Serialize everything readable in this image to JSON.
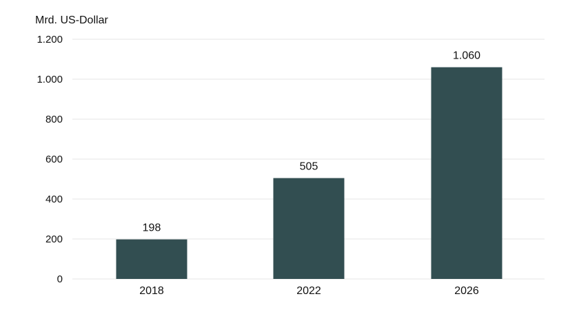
{
  "chart_data": {
    "type": "bar",
    "ylabel": "Mrd. US-Dollar",
    "categories": [
      "2018",
      "2022",
      "2026"
    ],
    "values": [
      198,
      505,
      1060
    ],
    "value_labels": [
      "198",
      "505",
      "1.060"
    ],
    "ylim": [
      0,
      1200
    ],
    "yticks": [
      0,
      200,
      400,
      600,
      800,
      1000,
      1200
    ],
    "ytick_labels": [
      "0",
      "200",
      "400",
      "600",
      "800",
      "1.000",
      "1.200"
    ],
    "grid": true,
    "bar_color": "#324e51",
    "grid_color": "#e6e6e6"
  }
}
